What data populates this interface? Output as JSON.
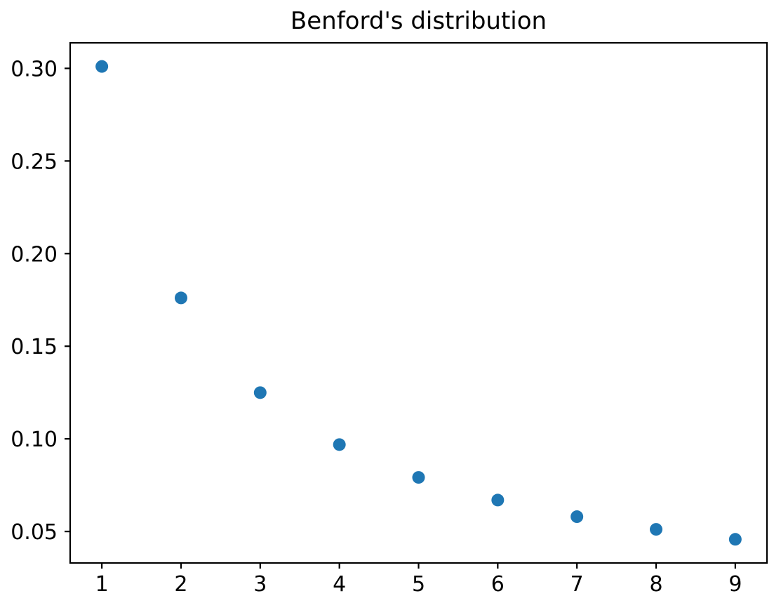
{
  "figure": {
    "background": "#ffffff"
  },
  "chart_data": {
    "type": "scatter",
    "title": "Benford's distribution",
    "xlabel": "",
    "ylabel": "",
    "x": [
      1,
      2,
      3,
      4,
      5,
      6,
      7,
      8,
      9
    ],
    "y": [
      0.30103,
      0.17609,
      0.12494,
      0.09691,
      0.07918,
      0.06695,
      0.05799,
      0.05115,
      0.04576
    ],
    "xticks": [
      1,
      2,
      3,
      4,
      5,
      6,
      7,
      8,
      9
    ],
    "xtick_labels": [
      "1",
      "2",
      "3",
      "4",
      "5",
      "6",
      "7",
      "8",
      "9"
    ],
    "yticks": [
      0.05,
      0.1,
      0.15,
      0.2,
      0.25,
      0.3
    ],
    "ytick_labels": [
      "0.05",
      "0.10",
      "0.15",
      "0.20",
      "0.25",
      "0.30"
    ],
    "xlim": [
      0.6,
      9.4
    ],
    "ylim": [
      0.032994,
      0.313794
    ],
    "grid": false,
    "legend": null,
    "marker_color": "#1f77b4",
    "marker_radius": 9,
    "axis_color": "#000000",
    "text_color": "#000000",
    "tick_font_px": 30
  }
}
